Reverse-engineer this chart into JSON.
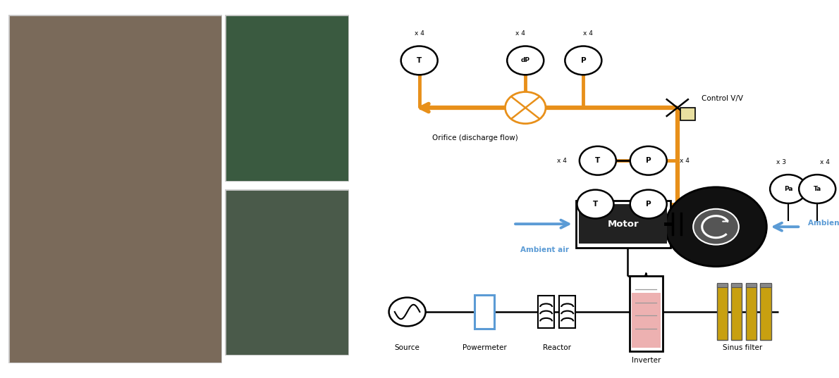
{
  "fig_width": 11.9,
  "fig_height": 5.37,
  "bg_color": "#ffffff",
  "orange_color": "#E8901A",
  "blue_color": "#5B9BD5",
  "black_color": "#000000",
  "labels": {
    "orifice_label": "Orifice (discharge flow)",
    "control_vv": "Control V/V",
    "motor_label": "Motor",
    "ambient_air_left": "Ambient air",
    "ambient_air_right": "Ambient air",
    "Pa_label": "Pa",
    "Ta_label": "Ta",
    "x3_label": "x 3",
    "x4_label": "x 4",
    "source_label": "Source",
    "powermeter_label": "Powermeter",
    "reactor_label": "Reactor",
    "inverter_label": "Inverter",
    "sinus_label": "Sinus filter"
  }
}
